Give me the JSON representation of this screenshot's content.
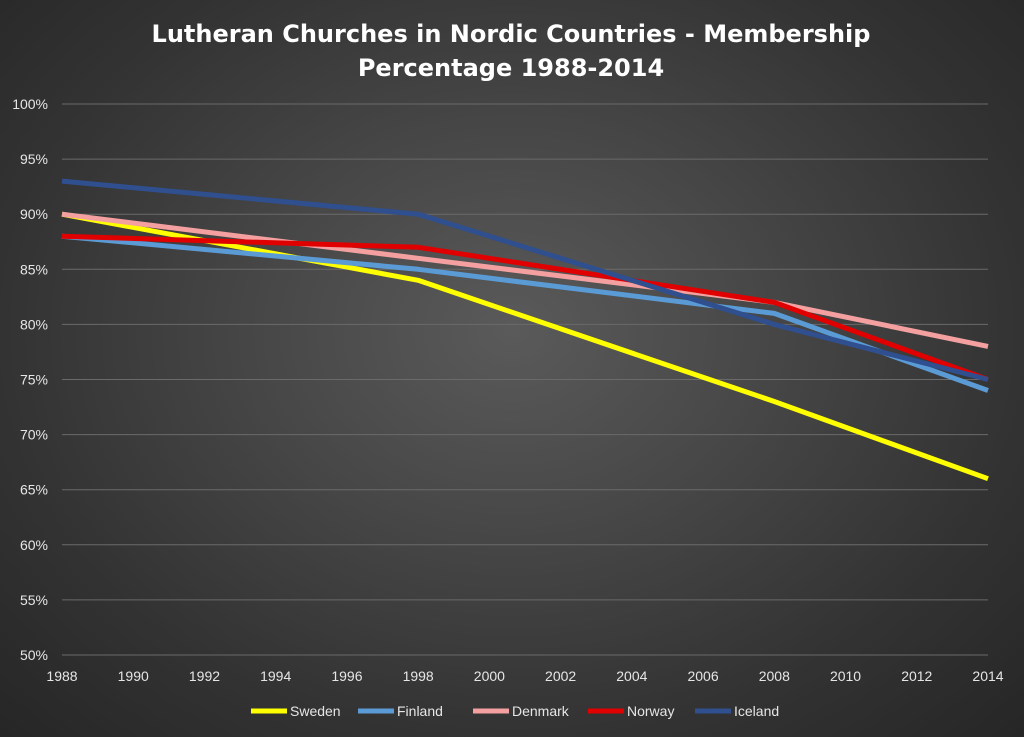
{
  "chart_data": {
    "type": "line",
    "title_lines": [
      "Lutheran Churches in Nordic Countries - Membership",
      "Percentage 1988-2014"
    ],
    "xlabel": "",
    "ylabel": "",
    "x": [
      1988,
      1998,
      2008,
      2014
    ],
    "x_ticks": [
      1988,
      1990,
      1992,
      1994,
      1996,
      1998,
      2000,
      2002,
      2004,
      2006,
      2008,
      2010,
      2012,
      2014
    ],
    "xlim": [
      1988,
      2014
    ],
    "ylim": [
      50,
      100
    ],
    "y_ticks": [
      50,
      55,
      60,
      65,
      70,
      75,
      80,
      85,
      90,
      95,
      100
    ],
    "y_tick_labels": [
      "50%",
      "55%",
      "60%",
      "65%",
      "70%",
      "75%",
      "80%",
      "85%",
      "90%",
      "95%",
      "100%"
    ],
    "grid": true,
    "legend_position": "bottom",
    "series": [
      {
        "name": "Sweden",
        "color": "#ffff00",
        "values": [
          90,
          84,
          73,
          66
        ]
      },
      {
        "name": "Finland",
        "color": "#5b9bd5",
        "values": [
          88,
          85,
          81,
          74
        ]
      },
      {
        "name": "Denmark",
        "color": "#f4a0a0",
        "values": [
          90,
          86,
          82,
          78
        ]
      },
      {
        "name": "Norway",
        "color": "#e00000",
        "values": [
          88,
          87,
          82,
          75
        ]
      },
      {
        "name": "Iceland",
        "color": "#2f4f8f",
        "values": [
          93,
          90,
          80,
          75
        ]
      }
    ]
  }
}
